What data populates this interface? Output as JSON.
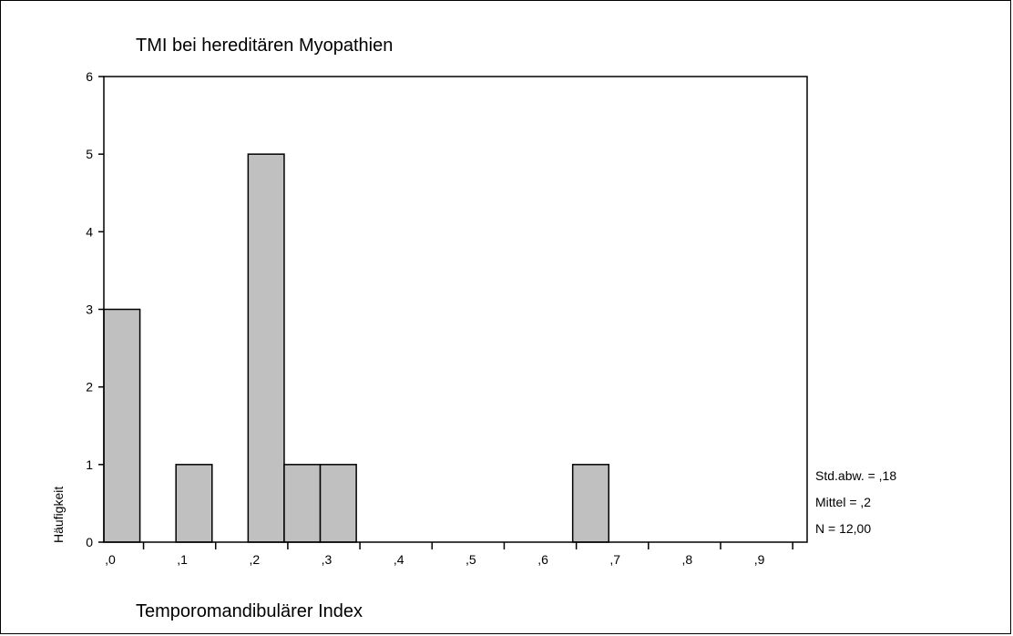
{
  "chart_data": {
    "type": "bar",
    "title": "TMI bei hereditären Myopathien",
    "xlabel": "Temporomandibulärer Index",
    "ylabel": "Häufigkeit",
    "ylim": [
      0,
      6
    ],
    "xlim": [
      -0.005,
      0.97
    ],
    "grid": false,
    "yticks": [
      0,
      1,
      2,
      3,
      4,
      5,
      6
    ],
    "xticks": [
      {
        "value": 0.0,
        "label": ",0"
      },
      {
        "value": 0.1,
        "label": ",1"
      },
      {
        "value": 0.2,
        "label": ",2"
      },
      {
        "value": 0.3,
        "label": ",3"
      },
      {
        "value": 0.4,
        "label": ",4"
      },
      {
        "value": 0.5,
        "label": ",5"
      },
      {
        "value": 0.6,
        "label": ",6"
      },
      {
        "value": 0.7,
        "label": ",7"
      },
      {
        "value": 0.8,
        "label": ",8"
      },
      {
        "value": 0.9,
        "label": ",9"
      }
    ],
    "bins": [
      {
        "start": -0.005,
        "end": 0.045,
        "count": 3
      },
      {
        "start": 0.095,
        "end": 0.145,
        "count": 1
      },
      {
        "start": 0.195,
        "end": 0.245,
        "count": 5
      },
      {
        "start": 0.245,
        "end": 0.295,
        "count": 1
      },
      {
        "start": 0.295,
        "end": 0.345,
        "count": 1
      },
      {
        "start": 0.645,
        "end": 0.695,
        "count": 1
      }
    ],
    "bar_color": "#c0c0c0",
    "stats": [
      {
        "label": "Std.abw. = ,18"
      },
      {
        "label": "Mittel = ,2"
      },
      {
        "label": "N = 12,00"
      }
    ]
  }
}
